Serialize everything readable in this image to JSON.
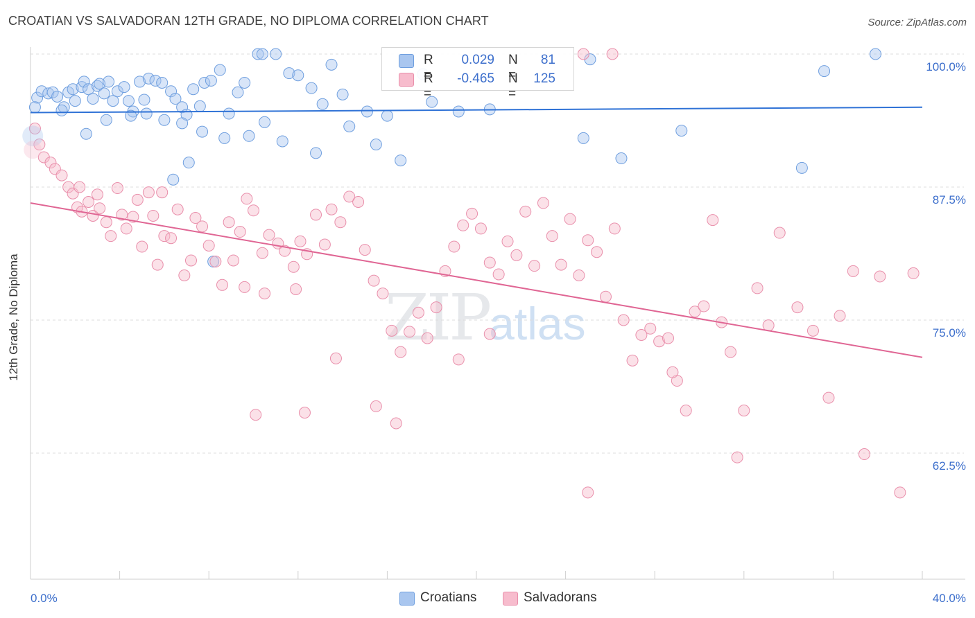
{
  "title": "CROATIAN VS SALVADORAN 12TH GRADE, NO DIPLOMA CORRELATION CHART",
  "source": "Source: ZipAtlas.com",
  "watermark": {
    "zip": "ZIP",
    "atlas": "atlas"
  },
  "legend": {
    "rows": [
      {
        "r_label": "R =",
        "r_value": "0.029",
        "n_label": "N =",
        "n_value": "81",
        "color": "#a9c6ef",
        "stroke": "#6f9fdf"
      },
      {
        "r_label": "R =",
        "r_value": "-0.465",
        "n_label": "N =",
        "n_value": "125",
        "color": "#f7bccd",
        "stroke": "#e98fab"
      }
    ]
  },
  "bottom_legend": [
    {
      "label": "Croatians",
      "color": "#a9c6ef",
      "stroke": "#6f9fdf"
    },
    {
      "label": "Salvadorans",
      "color": "#f7bccd",
      "stroke": "#e98fab"
    }
  ],
  "chart_data": {
    "type": "scatter",
    "title": "CROATIAN VS SALVADORAN 12TH GRADE, NO DIPLOMA CORRELATION CHART",
    "xlabel": "",
    "ylabel": "12th Grade, No Diploma",
    "xlim": [
      0,
      40
    ],
    "ylim": [
      50,
      100
    ],
    "x_ticks": [
      "0.0%",
      "40.0%"
    ],
    "y_ticks": [
      {
        "value": 100,
        "label": "100.0%"
      },
      {
        "value": 87.5,
        "label": "87.5%"
      },
      {
        "value": 75,
        "label": "75.0%"
      },
      {
        "value": 62.5,
        "label": "62.5%"
      }
    ],
    "grid": true,
    "series": [
      {
        "name": "Croatians",
        "color": "#6f9fdf",
        "trend": {
          "y_at_0": 94.5,
          "y_at_40": 95.0
        },
        "points": [
          [
            0.3,
            95.9
          ],
          [
            0.5,
            96.5
          ],
          [
            0.8,
            96.3
          ],
          [
            1.0,
            96.4
          ],
          [
            1.2,
            96.0
          ],
          [
            1.5,
            95.0
          ],
          [
            1.7,
            96.4
          ],
          [
            1.9,
            96.7
          ],
          [
            2.0,
            95.6
          ],
          [
            2.3,
            96.9
          ],
          [
            2.4,
            97.4
          ],
          [
            2.6,
            96.7
          ],
          [
            2.8,
            95.8
          ],
          [
            3.0,
            97.0
          ],
          [
            3.1,
            97.2
          ],
          [
            3.3,
            96.3
          ],
          [
            3.5,
            97.4
          ],
          [
            3.7,
            95.6
          ],
          [
            3.9,
            96.5
          ],
          [
            4.2,
            96.9
          ],
          [
            4.4,
            95.6
          ],
          [
            4.6,
            94.6
          ],
          [
            4.9,
            97.4
          ],
          [
            5.1,
            95.7
          ],
          [
            5.3,
            97.7
          ],
          [
            5.6,
            97.5
          ],
          [
            5.9,
            97.3
          ],
          [
            6.3,
            96.5
          ],
          [
            6.5,
            95.8
          ],
          [
            6.8,
            95.0
          ],
          [
            7.0,
            94.3
          ],
          [
            7.3,
            96.7
          ],
          [
            7.6,
            95.1
          ],
          [
            7.8,
            97.3
          ],
          [
            8.1,
            97.5
          ],
          [
            8.5,
            98.5
          ],
          [
            8.9,
            94.4
          ],
          [
            9.3,
            96.4
          ],
          [
            9.6,
            97.3
          ],
          [
            10.2,
            100.0
          ],
          [
            11.0,
            100.0
          ],
          [
            11.6,
            98.2
          ],
          [
            12.0,
            98.0
          ],
          [
            12.6,
            96.8
          ],
          [
            13.1,
            95.3
          ],
          [
            14.0,
            96.2
          ],
          [
            15.1,
            94.6
          ],
          [
            16.0,
            94.2
          ],
          [
            18.0,
            95.5
          ],
          [
            17.6,
            98.1
          ],
          [
            19.2,
            94.6
          ],
          [
            20.6,
            94.8
          ],
          [
            24.8,
            92.1
          ],
          [
            26.5,
            90.2
          ],
          [
            29.2,
            92.8
          ],
          [
            34.6,
            89.3
          ],
          [
            35.6,
            98.4
          ],
          [
            37.9,
            100.0
          ],
          [
            0.2,
            95.0
          ],
          [
            1.4,
            94.7
          ],
          [
            2.5,
            92.5
          ],
          [
            3.4,
            93.8
          ],
          [
            4.5,
            94.2
          ],
          [
            5.2,
            94.4
          ],
          [
            6.0,
            93.8
          ],
          [
            6.8,
            93.5
          ],
          [
            7.7,
            92.7
          ],
          [
            8.7,
            92.1
          ],
          [
            9.8,
            92.3
          ],
          [
            10.5,
            93.6
          ],
          [
            11.3,
            91.8
          ],
          [
            12.8,
            90.7
          ],
          [
            14.3,
            93.2
          ],
          [
            15.5,
            91.5
          ],
          [
            16.6,
            90.0
          ],
          [
            7.1,
            89.8
          ],
          [
            6.4,
            88.2
          ],
          [
            8.2,
            80.5
          ],
          [
            10.4,
            100.0
          ],
          [
            13.5,
            99.0
          ],
          [
            25.1,
            99.5
          ]
        ]
      },
      {
        "name": "Salvadorans",
        "color": "#e98fab",
        "trend": {
          "y_at_0": 86.0,
          "y_at_40": 71.5
        },
        "points": [
          [
            0.2,
            93.0
          ],
          [
            0.4,
            91.5
          ],
          [
            0.6,
            90.3
          ],
          [
            0.9,
            89.8
          ],
          [
            1.1,
            89.2
          ],
          [
            1.4,
            88.6
          ],
          [
            1.7,
            87.5
          ],
          [
            1.9,
            86.9
          ],
          [
            2.1,
            85.6
          ],
          [
            2.3,
            85.2
          ],
          [
            2.6,
            86.1
          ],
          [
            2.8,
            84.8
          ],
          [
            3.1,
            85.5
          ],
          [
            3.4,
            84.2
          ],
          [
            3.6,
            82.9
          ],
          [
            3.9,
            87.4
          ],
          [
            4.1,
            84.9
          ],
          [
            4.3,
            83.6
          ],
          [
            4.6,
            84.7
          ],
          [
            4.8,
            86.3
          ],
          [
            5.0,
            81.9
          ],
          [
            5.3,
            87.0
          ],
          [
            5.5,
            84.8
          ],
          [
            5.7,
            80.2
          ],
          [
            6.0,
            82.9
          ],
          [
            6.3,
            82.7
          ],
          [
            6.6,
            85.4
          ],
          [
            6.9,
            79.2
          ],
          [
            7.2,
            80.6
          ],
          [
            7.4,
            84.6
          ],
          [
            7.7,
            83.8
          ],
          [
            8.0,
            82.0
          ],
          [
            8.3,
            80.5
          ],
          [
            8.6,
            78.3
          ],
          [
            8.9,
            84.2
          ],
          [
            9.1,
            80.6
          ],
          [
            9.4,
            83.3
          ],
          [
            9.7,
            86.4
          ],
          [
            10.0,
            85.3
          ],
          [
            10.4,
            81.3
          ],
          [
            10.7,
            83.0
          ],
          [
            11.1,
            82.2
          ],
          [
            11.4,
            81.5
          ],
          [
            11.8,
            80.0
          ],
          [
            12.1,
            82.4
          ],
          [
            12.4,
            81.2
          ],
          [
            12.8,
            84.9
          ],
          [
            13.2,
            82.1
          ],
          [
            13.5,
            85.4
          ],
          [
            13.9,
            84.2
          ],
          [
            14.3,
            86.6
          ],
          [
            14.7,
            86.1
          ],
          [
            15.0,
            81.6
          ],
          [
            15.4,
            78.7
          ],
          [
            15.8,
            77.5
          ],
          [
            16.2,
            74.0
          ],
          [
            16.6,
            72.0
          ],
          [
            17.0,
            73.9
          ],
          [
            17.4,
            75.7
          ],
          [
            17.8,
            73.3
          ],
          [
            18.2,
            76.2
          ],
          [
            18.6,
            79.6
          ],
          [
            19.0,
            81.9
          ],
          [
            19.4,
            83.9
          ],
          [
            19.8,
            85.0
          ],
          [
            20.2,
            83.6
          ],
          [
            20.6,
            80.4
          ],
          [
            21.0,
            79.3
          ],
          [
            21.4,
            82.4
          ],
          [
            21.8,
            81.1
          ],
          [
            22.2,
            85.2
          ],
          [
            22.6,
            80.1
          ],
          [
            23.0,
            86.0
          ],
          [
            23.4,
            82.9
          ],
          [
            23.8,
            80.2
          ],
          [
            24.2,
            84.5
          ],
          [
            24.6,
            79.2
          ],
          [
            25.0,
            82.5
          ],
          [
            25.4,
            81.4
          ],
          [
            25.8,
            77.2
          ],
          [
            26.2,
            83.6
          ],
          [
            26.6,
            75.0
          ],
          [
            27.0,
            71.2
          ],
          [
            27.4,
            73.6
          ],
          [
            27.8,
            74.2
          ],
          [
            28.2,
            73.0
          ],
          [
            28.6,
            73.3
          ],
          [
            29.0,
            69.3
          ],
          [
            29.4,
            66.5
          ],
          [
            29.8,
            75.8
          ],
          [
            30.2,
            76.3
          ],
          [
            30.6,
            84.4
          ],
          [
            31.0,
            74.8
          ],
          [
            31.4,
            72.0
          ],
          [
            32.0,
            66.5
          ],
          [
            32.6,
            78.0
          ],
          [
            33.1,
            74.5
          ],
          [
            33.6,
            83.2
          ],
          [
            34.4,
            76.2
          ],
          [
            35.1,
            74.0
          ],
          [
            35.8,
            67.7
          ],
          [
            36.3,
            75.4
          ],
          [
            36.9,
            79.6
          ],
          [
            38.1,
            79.1
          ],
          [
            39.6,
            79.4
          ],
          [
            39.0,
            58.8
          ],
          [
            37.4,
            62.4
          ],
          [
            31.7,
            62.1
          ],
          [
            25.0,
            58.8
          ],
          [
            15.5,
            66.9
          ],
          [
            12.3,
            66.3
          ],
          [
            10.1,
            66.1
          ],
          [
            16.4,
            65.3
          ],
          [
            19.2,
            71.3
          ],
          [
            20.6,
            73.7
          ],
          [
            28.8,
            70.1
          ],
          [
            9.6,
            78.1
          ],
          [
            10.5,
            77.5
          ],
          [
            11.9,
            77.9
          ],
          [
            13.7,
            71.4
          ],
          [
            2.2,
            87.5
          ],
          [
            3.0,
            86.8
          ],
          [
            5.9,
            87.0
          ],
          [
            24.8,
            100.0
          ],
          [
            26.1,
            100.0
          ]
        ]
      }
    ]
  }
}
